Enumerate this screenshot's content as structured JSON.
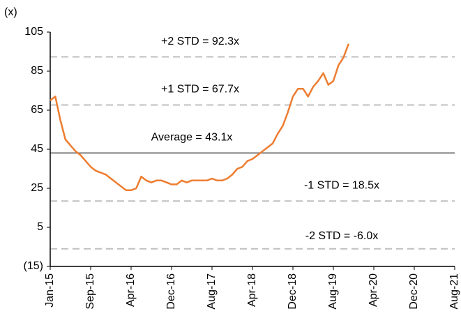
{
  "chart_data": {
    "type": "line",
    "y_unit_label": "(x)",
    "x": [
      0,
      1,
      2,
      3,
      4,
      5,
      6,
      7,
      8,
      9,
      10,
      11,
      12,
      13,
      14,
      15,
      16,
      17,
      18,
      19,
      20,
      21,
      22,
      23,
      24,
      25,
      26,
      27,
      28,
      29,
      30,
      31,
      32,
      33,
      34,
      35,
      36,
      37,
      38,
      39,
      40,
      41,
      42,
      43,
      44,
      45,
      46,
      47,
      48,
      49,
      50,
      51,
      52,
      53,
      54,
      55,
      56,
      57,
      58,
      59
    ],
    "values": [
      70,
      72,
      60,
      50,
      47,
      44,
      42,
      39,
      36,
      34,
      33,
      32,
      30,
      28,
      26,
      24,
      24,
      25,
      31,
      29,
      28,
      29,
      29,
      28,
      27,
      27,
      29,
      28,
      29,
      29,
      29,
      29,
      30,
      29,
      29,
      30,
      32,
      35,
      36,
      39,
      40,
      42,
      44,
      46,
      48,
      53,
      57,
      64,
      72,
      76,
      76,
      72,
      77,
      80,
      84,
      78,
      80,
      88,
      92,
      99
    ],
    "color": "#ed7d31",
    "xlim": [
      0,
      80
    ],
    "xticks": [
      {
        "value": 0,
        "label": "Jan-15"
      },
      {
        "value": 8,
        "label": "Sep-15"
      },
      {
        "value": 16,
        "label": "Apr-16"
      },
      {
        "value": 24,
        "label": "Dec-16"
      },
      {
        "value": 32,
        "label": "Aug-17"
      },
      {
        "value": 40,
        "label": "Apr-18"
      },
      {
        "value": 48,
        "label": "Dec-18"
      },
      {
        "value": 56,
        "label": "Aug-19"
      },
      {
        "value": 64,
        "label": "Apr-20"
      },
      {
        "value": 72,
        "label": "Dec-20"
      },
      {
        "value": 80,
        "label": "Aug-21"
      }
    ],
    "ylim": [
      -15,
      105
    ],
    "yticks": [
      105,
      85,
      65,
      45,
      25,
      5,
      {
        "value": -15,
        "label": "(15)"
      }
    ],
    "reference_lines": [
      {
        "label": "+2 STD = 92.3x",
        "value": 92.3,
        "style": "dashed",
        "color": "#bfbfbf"
      },
      {
        "label": "+1 STD = 67.7x",
        "value": 67.7,
        "style": "dashed",
        "color": "#bfbfbf"
      },
      {
        "label": "Average = 43.1x",
        "value": 43.1,
        "style": "solid",
        "color": "#7f7f7f"
      },
      {
        "label": "-1 STD = 18.5x",
        "value": 18.5,
        "style": "dashed",
        "color": "#bfbfbf"
      },
      {
        "label": "-2 STD = -6.0x",
        "value": -6.0,
        "style": "dashed",
        "color": "#bfbfbf"
      }
    ]
  }
}
